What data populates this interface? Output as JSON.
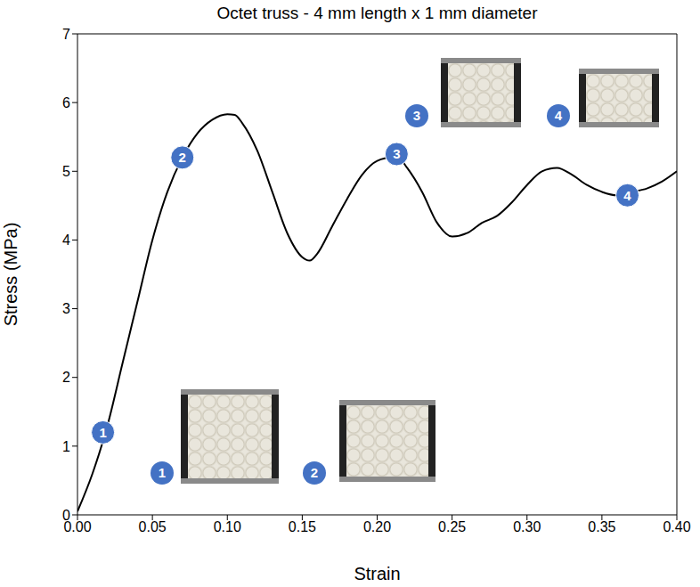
{
  "chart_data": {
    "type": "line",
    "title": "Octet truss - 4 mm length x 1 mm diameter",
    "x_label": "Strain",
    "y_label": "Stress (MPa)",
    "xlim": [
      0,
      0.4
    ],
    "xticks": [
      {
        "value": 0,
        "label": "0.00"
      },
      {
        "value": 0.05,
        "label": "0.05"
      },
      {
        "value": 0.1,
        "label": "0.10"
      },
      {
        "value": 0.15,
        "label": "0.15"
      },
      {
        "value": 0.2,
        "label": "0.20"
      },
      {
        "value": 0.25,
        "label": "0.25"
      },
      {
        "value": 0.3,
        "label": "0.30"
      },
      {
        "value": 0.35,
        "label": "0.35"
      },
      {
        "value": 0.4,
        "label": "0.40"
      }
    ],
    "ylim": [
      0,
      7
    ],
    "yticks": [
      0,
      1,
      2,
      3,
      4,
      5,
      6,
      7
    ],
    "grid": false,
    "x": [
      0,
      0.01,
      0.02,
      0.03,
      0.04,
      0.05,
      0.06,
      0.07,
      0.08,
      0.09,
      0.1,
      0.105,
      0.11,
      0.12,
      0.13,
      0.14,
      0.15,
      0.155,
      0.16,
      0.17,
      0.18,
      0.19,
      0.2,
      0.21,
      0.215,
      0.22,
      0.23,
      0.24,
      0.25,
      0.26,
      0.27,
      0.28,
      0.29,
      0.3,
      0.31,
      0.32,
      0.33,
      0.34,
      0.35,
      0.36,
      0.37,
      0.38,
      0.39,
      0.4
    ],
    "series": [
      {
        "color": "#000000",
        "values": [
          0.05,
          0.6,
          1.3,
          2.2,
          3.1,
          4.0,
          4.7,
          5.2,
          5.55,
          5.75,
          5.83,
          5.82,
          5.7,
          5.3,
          4.7,
          4.1,
          3.75,
          3.7,
          3.8,
          4.2,
          4.6,
          4.95,
          5.15,
          5.2,
          5.18,
          5.05,
          4.7,
          4.25,
          4.05,
          4.1,
          4.25,
          4.35,
          4.55,
          4.8,
          5.0,
          5.05,
          4.95,
          4.8,
          4.7,
          4.65,
          4.7,
          4.75,
          4.85,
          5.0
        ]
      }
    ],
    "annotations": [
      {
        "text": "1",
        "x": 0.017,
        "y": 1.2,
        "color": "#4472c4"
      },
      {
        "text": "2",
        "x": 0.07,
        "y": 5.2,
        "color": "#4472c4"
      },
      {
        "text": "3",
        "x": 0.213,
        "y": 5.25,
        "color": "#4472c4"
      },
      {
        "text": "4",
        "x": 0.367,
        "y": 4.65,
        "color": "#4472c4"
      }
    ],
    "insets": [
      {
        "text": "1",
        "color": "#4472c4"
      },
      {
        "text": "2",
        "color": "#4472c4"
      },
      {
        "text": "3",
        "color": "#4472c4"
      },
      {
        "text": "4",
        "color": "#4472c4"
      }
    ]
  }
}
